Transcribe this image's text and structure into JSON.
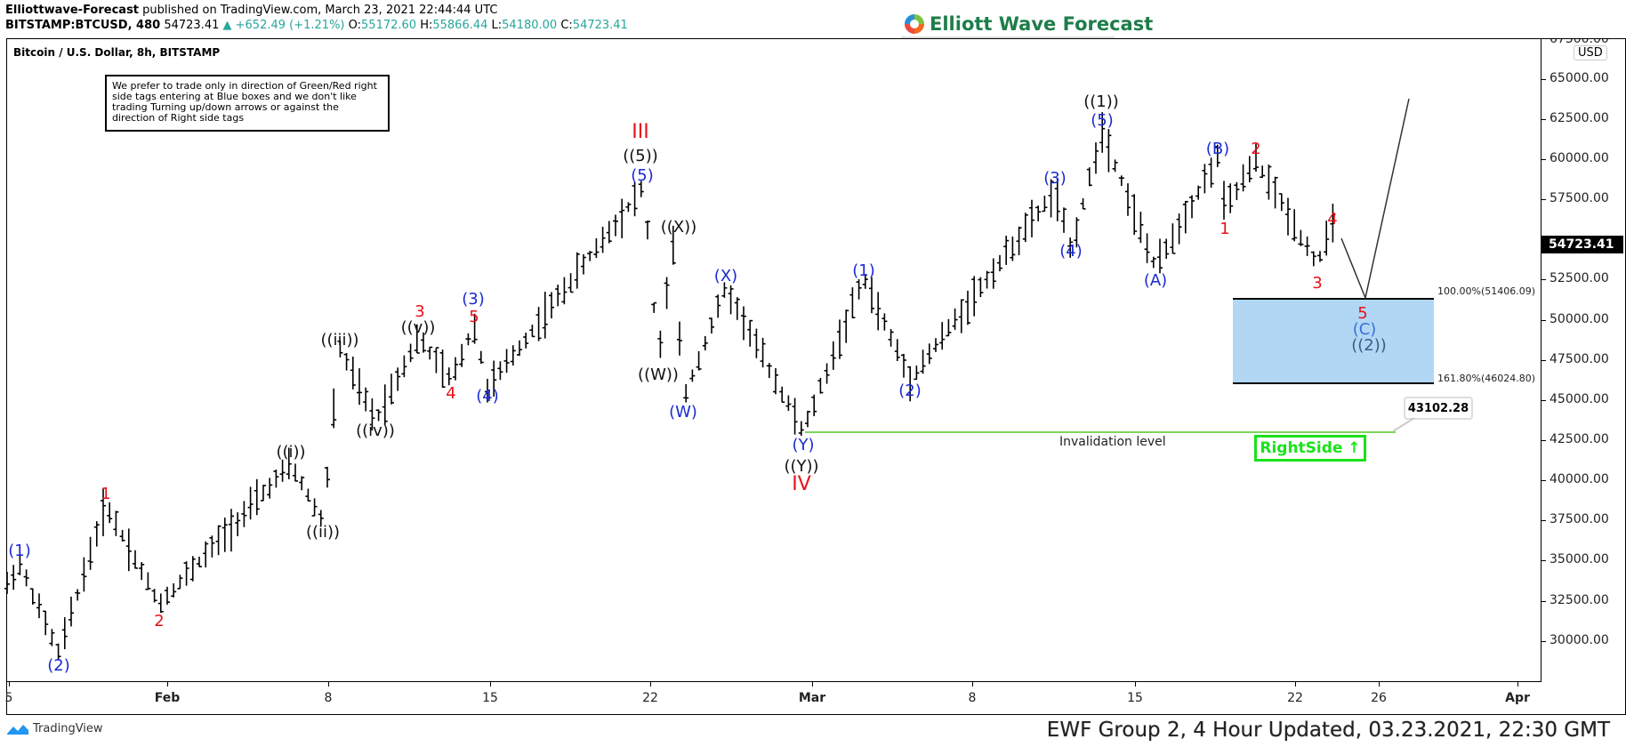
{
  "header": {
    "publisher": "Elliottwave-Forecast",
    "published_text": "published on TradingView.com, March 23, 2021 22:44:44 UTC",
    "symbol": "BITSTAMP:BTCUSD, 480",
    "last": "54723.41",
    "change": "+652.49 (+1.21%)",
    "o_label": "O:",
    "o": "55172.60",
    "h_label": "H:",
    "h": "55866.44",
    "l_label": "L:",
    "l": "54180.00",
    "c_label": "C:",
    "c": "54723.41",
    "up_arrow": "▲"
  },
  "logo": {
    "text": "Elliott Wave Forecast"
  },
  "pane": {
    "title": "Bitcoin / U.S. Dollar, 8h, BITSTAMP",
    "note": "We prefer to trade only in direction of Green/Red right side tags entering at Blue boxes and we don't like trading Turning up/down arrows or against the direction of Right side tags"
  },
  "price_axis": {
    "currency": "USD",
    "labels": [
      "67500.00",
      "65000.00",
      "62500.00",
      "60000.00",
      "57500.00",
      "52500.00",
      "50000.00",
      "47500.00",
      "45000.00",
      "42500.00",
      "40000.00",
      "37500.00",
      "35000.00",
      "32500.00",
      "30000.00"
    ],
    "current_price": "54723.41"
  },
  "time_axis": {
    "labels": [
      "5",
      "Feb",
      "8",
      "15",
      "22",
      "Mar",
      "8",
      "15",
      "22",
      "26",
      "Apr"
    ]
  },
  "annotations": {
    "box_top": "100.00%(51406.09)",
    "box_bottom": "161.80%(46024.80)",
    "invalidation_label": "Invalidation level",
    "invalidation_price": "43102.28",
    "rightside": "RightSide",
    "rightside_arrow": "↑",
    "waves": {
      "w1": "(1)",
      "w2": "(2)",
      "r1": "1",
      "r2": "2",
      "i": "((i))",
      "ii": "((ii))",
      "iii": "((iii))",
      "iv": "((iv))",
      "v": "((v))",
      "r3a": "3",
      "r4a": "4",
      "r5a": "5",
      "w3": "(3)",
      "w4": "(4)",
      "III": "III",
      "w5c": "((5))",
      "w5": "(5)",
      "X2": "((X))",
      "W2": "((W))",
      "W": "(W)",
      "X": "(X)",
      "Y": "(Y)",
      "Y2": "((Y))",
      "IV": "IV",
      "m1": "(1)",
      "m2": "(2)",
      "m3": "(3)",
      "m4": "(4)",
      "m5": "(5)",
      "one": "((1))",
      "A": "(A)",
      "B": "(B)",
      "s1": "1",
      "s2": "2",
      "s3": "3",
      "s4": "4",
      "s5": "5",
      "C": "(C)",
      "two": "((2))"
    }
  },
  "footer": {
    "tradingview": "TradingView",
    "ewf": "EWF Group 2, 4 Hour Updated, 03.23.2021, 22:30 GMT"
  },
  "chart_data": {
    "type": "ohlc",
    "title": "Bitcoin / U.S. Dollar, 8h, BITSTAMP",
    "xlabel": "",
    "ylabel": "USD",
    "ylim": [
      28000,
      67500
    ],
    "x_ticks": [
      "5",
      "Feb",
      "8",
      "15",
      "22",
      "Mar",
      "8",
      "15",
      "22",
      "26",
      "Apr"
    ],
    "y_ticks": [
      30000,
      32500,
      35000,
      37500,
      40000,
      42500,
      45000,
      47500,
      50000,
      52500,
      55000,
      57500,
      60000,
      62500,
      65000
    ],
    "last_price": 54723.41,
    "ohlc_last_bar": {
      "open": 55172.6,
      "high": 55866.44,
      "low": 54180.0,
      "close": 54723.41,
      "change": 652.49,
      "change_pct": 1.21
    },
    "wave_pivots": [
      {
        "label": "(1)",
        "date": "Jan 25",
        "price": 34800
      },
      {
        "label": "(2)",
        "date": "Jan 27",
        "price": 29200
      },
      {
        "label": "1",
        "date": "Jan 29",
        "price": 38500
      },
      {
        "label": "2",
        "date": "Jan 31",
        "price": 32300
      },
      {
        "label": "((i))",
        "date": "Feb 6",
        "price": 41000
      },
      {
        "label": "((ii))",
        "date": "Feb 7",
        "price": 37400
      },
      {
        "label": "((iii))",
        "date": "Feb 8",
        "price": 48200
      },
      {
        "label": "((iv))",
        "date": "Feb 10",
        "price": 43700
      },
      {
        "label": "3 / ((v))",
        "date": "Feb 11",
        "price": 48900
      },
      {
        "label": "4",
        "date": "Feb 13",
        "price": 46200
      },
      {
        "label": "(3) / 5",
        "date": "Feb 14",
        "price": 49700
      },
      {
        "label": "(4)",
        "date": "Feb 15",
        "price": 45700
      },
      {
        "label": "III / ((5)) / (5)",
        "date": "Feb 21",
        "price": 58300
      },
      {
        "label": "((W))",
        "date": "Feb 23",
        "price": 47500
      },
      {
        "label": "((X))",
        "date": "Feb 23",
        "price": 54700
      },
      {
        "label": "(W)",
        "date": "Feb 23",
        "price": 45000
      },
      {
        "label": "(X)",
        "date": "Feb 25",
        "price": 52000
      },
      {
        "label": "IV / ((Y)) / (Y)",
        "date": "Feb 28",
        "price": 43000
      },
      {
        "label": "(1)",
        "date": "Mar 3",
        "price": 52600
      },
      {
        "label": "(2)",
        "date": "Mar 5",
        "price": 46300
      },
      {
        "label": "(3)",
        "date": "Mar 10",
        "price": 58000
      },
      {
        "label": "(4)",
        "date": "Mar 11",
        "price": 54300
      },
      {
        "label": "((1)) / (5)",
        "date": "Mar 13",
        "price": 61800
      },
      {
        "label": "(A)",
        "date": "Mar 15",
        "price": 53200
      },
      {
        "label": "(B)",
        "date": "Mar 18",
        "price": 60100
      },
      {
        "label": "1",
        "date": "Mar 18",
        "price": 56900
      },
      {
        "label": "2",
        "date": "Mar 20",
        "price": 59900
      },
      {
        "label": "3",
        "date": "Mar 22",
        "price": 53500
      },
      {
        "label": "4",
        "date": "Mar 23",
        "price": 55900
      },
      {
        "label": "5 / (C) / ((2)) projected",
        "date": "Mar 24",
        "price": 51200
      }
    ],
    "blue_box": {
      "top": 51406.09,
      "bottom": 46024.8,
      "top_label": "100.00%",
      "bottom_label": "161.80%"
    },
    "invalidation_level": 43102.28,
    "projection_path": [
      [
        55000,
        "Mar 23"
      ],
      [
        51200,
        "Mar 24"
      ],
      [
        63800,
        "Mar 26"
      ]
    ]
  }
}
